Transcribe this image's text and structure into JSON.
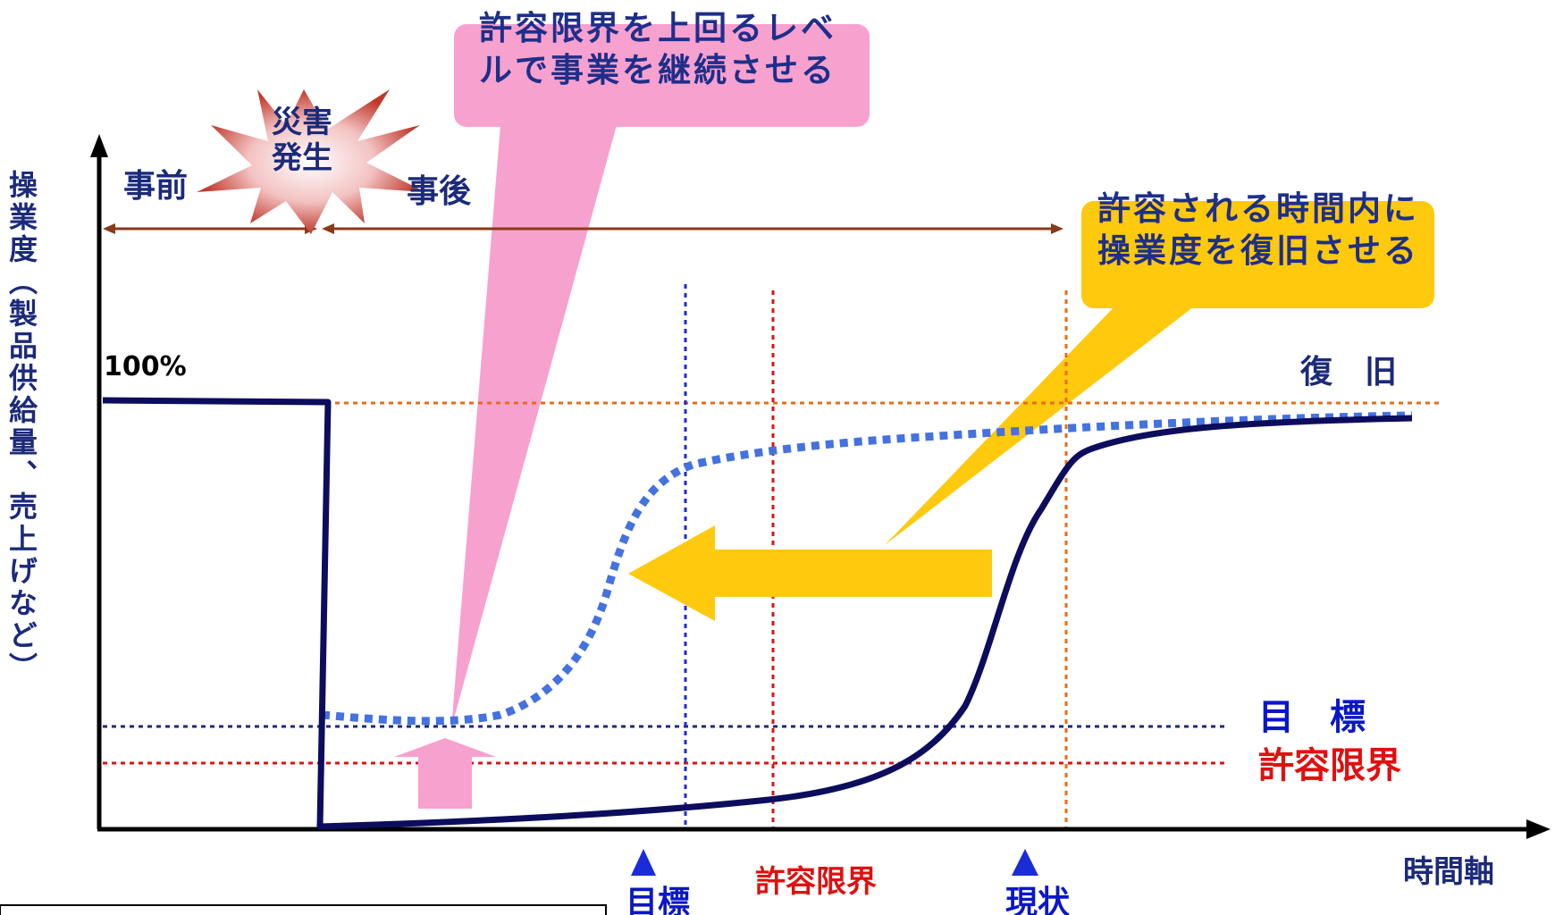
{
  "colors": {
    "axis": "#000000",
    "actual_line": "#0d0d5e",
    "target_line": "#4472e0",
    "pink": "#f7a1cf",
    "yellow": "#ffc90e",
    "brown": "#8b3a1a",
    "blue_label": "#0a17c8",
    "red_label": "#e01010",
    "orange_line": "#ee6a12"
  },
  "y_axis_label": "操業度（製品供給量、売上げなど）",
  "x_axis_label": "時間軸",
  "pct_100": "100%",
  "disaster_line1": "災害",
  "disaster_line2": "発生",
  "before_label": "事前",
  "after_label": "事後",
  "pink_callout": "許容限界を上回るレベルで事業を継続させる",
  "yellow_callout": "許容される時間内に操業度を復旧させる",
  "recovery_label": "復　旧",
  "target_level_label": "目　標",
  "tolerance_level_label": "許容限界",
  "marker_target": "目標",
  "marker_tolerance": "許容限界",
  "marker_current": "現状"
}
